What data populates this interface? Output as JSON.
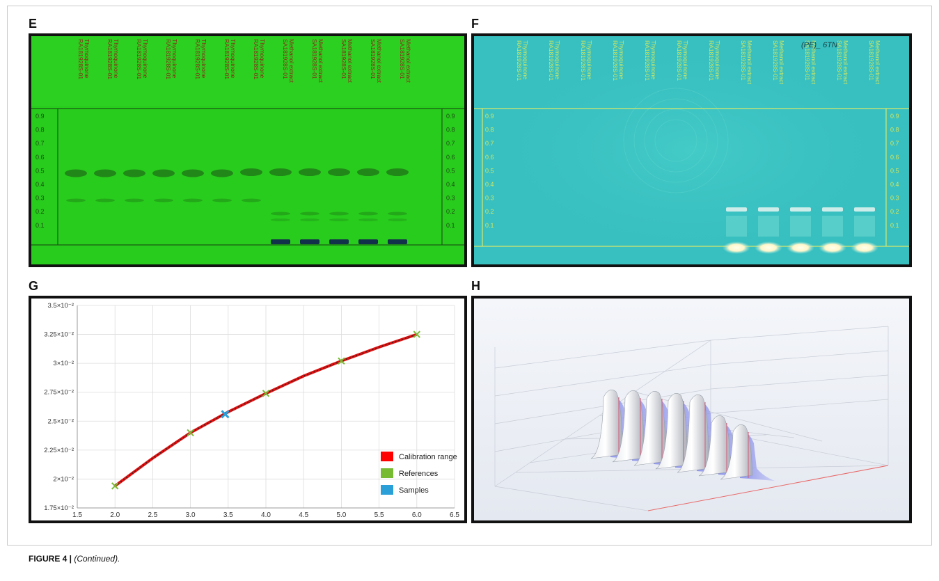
{
  "panels": {
    "E": {
      "letter": "E"
    },
    "F": {
      "letter": "F"
    },
    "G": {
      "letter": "G"
    },
    "H": {
      "letter": "H"
    }
  },
  "caption": {
    "label": "FIGURE 4 |",
    "text": "(Continued)."
  },
  "tlc": {
    "rf_ticks": [
      "0.9",
      "0.8",
      "0.7",
      "0.6",
      "0.5",
      "0.4",
      "0.3",
      "0.2",
      "0.1"
    ],
    "lanes_E": [
      {
        "id": "RA181928S-01",
        "name": "Thymoquinone"
      },
      {
        "id": "RA181928S-01",
        "name": "Thymoquinone"
      },
      {
        "id": "RA181928S-01",
        "name": "Thymoquinone"
      },
      {
        "id": "RA181928S-01",
        "name": "Thymoquinone"
      },
      {
        "id": "RA181928S-01",
        "name": "Thymoquinone"
      },
      {
        "id": "RA181928S-01",
        "name": "Thymoquinone"
      },
      {
        "id": "RA181928S-01",
        "name": "Thymoquinone"
      },
      {
        "id": "SA181928S-01",
        "name": "Methanol extract"
      },
      {
        "id": "SA181928S-01",
        "name": "Methanol extract"
      },
      {
        "id": "SA181928S-01",
        "name": "Methanol extract"
      },
      {
        "id": "SA181928S-01",
        "name": "Methanol extract"
      },
      {
        "id": "SA181928S-01",
        "name": "Methanol extract"
      }
    ],
    "lanes_F": [
      {
        "id": "RA181928S-01",
        "name": "Thymoquinone"
      },
      {
        "id": "RA181928S-01",
        "name": "Thymoquinone"
      },
      {
        "id": "RA181928S-01",
        "name": "Thymoquinone"
      },
      {
        "id": "RA181928S-01",
        "name": "Thymoquinone"
      },
      {
        "id": "RA181928S-01",
        "name": "Thymoquinone"
      },
      {
        "id": "RA181928S-01",
        "name": "Thymoquinone"
      },
      {
        "id": "RA181928S-01",
        "name": "Thymoquinone"
      },
      {
        "id": "SA181928S-01",
        "name": "Methanol extract"
      },
      {
        "id": "SA181928S-01",
        "name": "Methanol extract"
      },
      {
        "id": "SA181928S-01",
        "name": "Methanol extract"
      },
      {
        "id": "SA181928S-01",
        "name": "Methanol extract"
      },
      {
        "id": "SA181928S-01",
        "name": "Methanol extract"
      }
    ],
    "handwritten_F": "(PE)_ 6TN",
    "colors": {
      "plate_uv254": "#28cc1c",
      "plate_uv366": "#38bfc0",
      "band_E": "#1e7a18",
      "band_F": "#fffbe0"
    }
  },
  "chart_data": [
    {
      "type": "scatter",
      "panel": "G",
      "x_ticks": [
        "1.5",
        "2.0",
        "2.5",
        "3.0",
        "3.5",
        "4.0",
        "4.5",
        "5.0",
        "5.5",
        "6.0",
        "6.5"
      ],
      "y_ticks": [
        "1.75×10⁻²",
        "2×10⁻²",
        "2.25×10⁻²",
        "2.5×10⁻²",
        "2.75×10⁻²",
        "3×10⁻²",
        "3.25×10⁻²",
        "3.5×10⁻²"
      ],
      "xlim": [
        1.5,
        6.5
      ],
      "ylim": [
        0.0175,
        0.035
      ],
      "grid": true,
      "legend_placement": "bottom-right",
      "calibration_curve": {
        "x": [
          2.0,
          2.5,
          3.0,
          3.5,
          4.0,
          4.5,
          5.0,
          5.5,
          6.0
        ],
        "y": [
          0.0194,
          0.0218,
          0.024,
          0.0258,
          0.0274,
          0.0289,
          0.0302,
          0.0314,
          0.0325
        ]
      },
      "series": [
        {
          "name": "Calibration range",
          "color": "#ff0000"
        },
        {
          "name": "References",
          "color": "#77bb33",
          "x": [
            2.0,
            3.0,
            4.0,
            5.0,
            6.0
          ],
          "y": [
            0.0194,
            0.024,
            0.0274,
            0.0302,
            0.0325
          ]
        },
        {
          "name": "Samples",
          "color": "#2a9fd8",
          "x": [
            3.46
          ],
          "y": [
            0.0256
          ]
        }
      ]
    }
  ]
}
